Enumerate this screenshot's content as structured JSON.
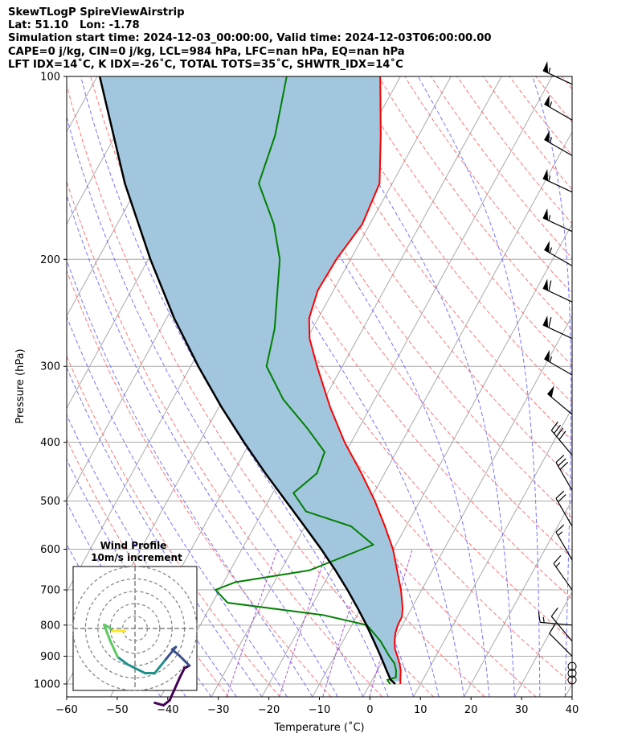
{
  "header": {
    "title": "SkewTLogP SpireViewAirstrip",
    "location": "Lat: 51.10   Lon: -1.78",
    "times": "Simulation start time: 2024-12-03_00:00:00, Valid time: 2024-12-03T06:00:00.00",
    "indices1": "CAPE=0 j/kg, CIN=0 j/kg, LCL=984 hPa, LFC=nan hPa, EQ=nan hPa",
    "indices2": "LFT IDX=14˚C, K IDX=-26˚C, TOTAL TOTS=35˚C, SHWTR_IDX=14˚C"
  },
  "chart_data": {
    "type": "skewt",
    "xlabel": "Temperature (˚C)",
    "ylabel": "Pressure (hPa)",
    "xlim": [
      -60,
      40
    ],
    "ylim": [
      1050,
      100
    ],
    "xticks": [
      "−60",
      "−50",
      "−40",
      "−30",
      "−20",
      "−10",
      "0",
      "10",
      "20",
      "30",
      "40"
    ],
    "yticks": [
      "100",
      "200",
      "300",
      "400",
      "500",
      "600",
      "700",
      "800",
      "900",
      "1000"
    ],
    "colors": {
      "temperature": "#ff0000",
      "dewpoint": "#008000",
      "parcel": "#000000",
      "shade": "#a2c6de",
      "dry_adiabat": "#ff6666",
      "moist_adiabat": "#6666ff",
      "mixing_ratio": "#9933cc",
      "isotherm": "#aaaaaa"
    },
    "temperature": [
      {
        "p": 1000,
        "t": 6.0
      },
      {
        "p": 975,
        "t": 5.3
      },
      {
        "p": 950,
        "t": 4.6
      },
      {
        "p": 925,
        "t": 3.6
      },
      {
        "p": 900,
        "t": 2.4
      },
      {
        "p": 875,
        "t": 1.1
      },
      {
        "p": 850,
        "t": 0.2
      },
      {
        "p": 825,
        "t": -0.5
      },
      {
        "p": 800,
        "t": -0.9
      },
      {
        "p": 775,
        "t": -1.0
      },
      {
        "p": 750,
        "t": -1.8
      },
      {
        "p": 700,
        "t": -4.1
      },
      {
        "p": 650,
        "t": -7.0
      },
      {
        "p": 600,
        "t": -10.1
      },
      {
        "p": 550,
        "t": -14.2
      },
      {
        "p": 500,
        "t": -18.9
      },
      {
        "p": 450,
        "t": -24.6
      },
      {
        "p": 400,
        "t": -31.3
      },
      {
        "p": 350,
        "t": -38.0
      },
      {
        "p": 300,
        "t": -45.0
      },
      {
        "p": 270,
        "t": -49.5
      },
      {
        "p": 250,
        "t": -51.8
      },
      {
        "p": 225,
        "t": -53.1
      },
      {
        "p": 200,
        "t": -52.8
      },
      {
        "p": 175,
        "t": -51.5
      },
      {
        "p": 150,
        "t": -52.5
      },
      {
        "p": 125,
        "t": -57.5
      },
      {
        "p": 100,
        "t": -64.0
      }
    ],
    "dewpoint": [
      {
        "p": 1000,
        "t": 4.0
      },
      {
        "p": 990,
        "t": 3.3
      },
      {
        "p": 985,
        "t": 3.0
      },
      {
        "p": 975,
        "t": 4.4
      },
      {
        "p": 950,
        "t": 3.7
      },
      {
        "p": 925,
        "t": 2.6
      },
      {
        "p": 900,
        "t": 0.8
      },
      {
        "p": 850,
        "t": -2.6
      },
      {
        "p": 800,
        "t": -7.0
      },
      {
        "p": 770,
        "t": -16.8
      },
      {
        "p": 735,
        "t": -37.0
      },
      {
        "p": 700,
        "t": -40.8
      },
      {
        "p": 680,
        "t": -37.7
      },
      {
        "p": 650,
        "t": -24.3
      },
      {
        "p": 590,
        "t": -14.5
      },
      {
        "p": 550,
        "t": -20.9
      },
      {
        "p": 520,
        "t": -31.4
      },
      {
        "p": 485,
        "t": -35.9
      },
      {
        "p": 450,
        "t": -33.4
      },
      {
        "p": 415,
        "t": -34.2
      },
      {
        "p": 380,
        "t": -40.1
      },
      {
        "p": 340,
        "t": -48.1
      },
      {
        "p": 300,
        "t": -55.0
      },
      {
        "p": 260,
        "t": -57.5
      },
      {
        "p": 200,
        "t": -64.0
      },
      {
        "p": 175,
        "t": -69.0
      },
      {
        "p": 160,
        "t": -73.3
      },
      {
        "p": 150,
        "t": -76.4
      },
      {
        "p": 125,
        "t": -78.4
      },
      {
        "p": 100,
        "t": -82.5
      }
    ],
    "parcel": [
      {
        "p": 1000,
        "t": 5.0
      },
      {
        "p": 984,
        "t": 3.6
      },
      {
        "p": 950,
        "t": 1.8
      },
      {
        "p": 900,
        "t": -0.9
      },
      {
        "p": 850,
        "t": -3.9
      },
      {
        "p": 800,
        "t": -7.1
      },
      {
        "p": 750,
        "t": -10.7
      },
      {
        "p": 700,
        "t": -14.7
      },
      {
        "p": 650,
        "t": -19.2
      },
      {
        "p": 600,
        "t": -24.3
      },
      {
        "p": 550,
        "t": -30.1
      },
      {
        "p": 500,
        "t": -36.5
      },
      {
        "p": 450,
        "t": -43.6
      },
      {
        "p": 400,
        "t": -51.2
      },
      {
        "p": 350,
        "t": -59.5
      },
      {
        "p": 300,
        "t": -68.5
      },
      {
        "p": 250,
        "t": -78.5
      },
      {
        "p": 200,
        "t": -89.6
      },
      {
        "p": 150,
        "t": -102.9
      },
      {
        "p": 100,
        "t": -119.5
      }
    ],
    "wind_barbs": [
      {
        "p": 1000,
        "speed_kt": 0
      },
      {
        "p": 975,
        "speed_kt": 0
      },
      {
        "p": 950,
        "speed_kt": 0
      },
      {
        "p": 900,
        "speed_kt": 10,
        "dir_deg": 315
      },
      {
        "p": 850,
        "speed_kt": 10,
        "dir_deg": 320
      },
      {
        "p": 800,
        "speed_kt": 15,
        "dir_deg": 275
      },
      {
        "p": 700,
        "speed_kt": 15,
        "dir_deg": 325
      },
      {
        "p": 625,
        "speed_kt": 15,
        "dir_deg": 330
      },
      {
        "p": 550,
        "speed_kt": 20,
        "dir_deg": 330
      },
      {
        "p": 480,
        "speed_kt": 30,
        "dir_deg": 330
      },
      {
        "p": 420,
        "speed_kt": 40,
        "dir_deg": 320
      },
      {
        "p": 360,
        "speed_kt": 50,
        "dir_deg": 310
      },
      {
        "p": 310,
        "speed_kt": 55,
        "dir_deg": 300
      },
      {
        "p": 270,
        "speed_kt": 60,
        "dir_deg": 295
      },
      {
        "p": 235,
        "speed_kt": 60,
        "dir_deg": 295
      },
      {
        "p": 205,
        "speed_kt": 55,
        "dir_deg": 300
      },
      {
        "p": 180,
        "speed_kt": 55,
        "dir_deg": 295
      },
      {
        "p": 155,
        "speed_kt": 55,
        "dir_deg": 295
      },
      {
        "p": 135,
        "speed_kt": 55,
        "dir_deg": 300
      },
      {
        "p": 118,
        "speed_kt": 55,
        "dir_deg": 300
      },
      {
        "p": 103,
        "speed_kt": 55,
        "dir_deg": 295
      }
    ],
    "inset": {
      "title": "Wind Profile",
      "subtitle": "10m/s increment",
      "rings": [
        1,
        2,
        3,
        4,
        5
      ],
      "colormap": [
        "#440154",
        "#3b528b",
        "#21918c",
        "#5ec962",
        "#fde725"
      ],
      "hodograph": [
        {
          "u": 1.6,
          "v": -6.0
        },
        {
          "u": 2.3,
          "v": -6.2
        },
        {
          "u": 2.8,
          "v": -5.8
        },
        {
          "u": 3.6,
          "v": -4.0
        },
        {
          "u": 4.0,
          "v": -3.2
        },
        {
          "u": 4.4,
          "v": -3.0
        },
        {
          "u": 3.6,
          "v": -2.2
        },
        {
          "u": 3.0,
          "v": -1.7
        },
        {
          "u": 3.3,
          "v": -1.5
        },
        {
          "u": 2.4,
          "v": -2.6
        },
        {
          "u": 1.6,
          "v": -3.6
        },
        {
          "u": 0.8,
          "v": -3.6
        },
        {
          "u": -0.6,
          "v": -2.9
        },
        {
          "u": -1.4,
          "v": -2.3
        },
        {
          "u": -2.0,
          "v": -1.0
        },
        {
          "u": -2.5,
          "v": 0.3
        },
        {
          "u": -2.1,
          "v": 0.1
        },
        {
          "u": -1.8,
          "v": -0.2
        },
        {
          "u": -0.8,
          "v": -0.2
        }
      ]
    }
  }
}
